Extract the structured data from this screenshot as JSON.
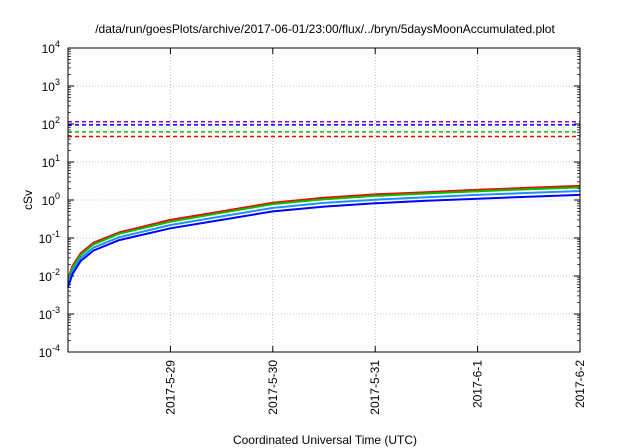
{
  "chart_data": {
    "type": "line",
    "title": "/data/run/goesPlots/archive/2017-06-01/23:00/flux/../bryn/5daysMoonAccumulated.plot",
    "xlabel": "Coordinated Universal Time (UTC)",
    "ylabel": "cSv",
    "yscale": "log",
    "ylim_exponents": [
      -4,
      4
    ],
    "xlim": [
      "2017-05-28 00:00",
      "2017-06-02 00:00"
    ],
    "grid": true,
    "y_ticks": [
      {
        "base": "10",
        "exp": "-4"
      },
      {
        "base": "10",
        "exp": "-3"
      },
      {
        "base": "10",
        "exp": "-2"
      },
      {
        "base": "10",
        "exp": "-1"
      },
      {
        "base": "10",
        "exp": "0"
      },
      {
        "base": "10",
        "exp": "1"
      },
      {
        "base": "10",
        "exp": "2"
      },
      {
        "base": "10",
        "exp": "3"
      },
      {
        "base": "10",
        "exp": "4"
      }
    ],
    "x_ticks": [
      {
        "label": "2017-5-29",
        "date": "2017-05-29"
      },
      {
        "label": "2017-5-30",
        "date": "2017-05-30"
      },
      {
        "label": "2017-5-31",
        "date": "2017-05-31"
      },
      {
        "label": "2017-6-1",
        "date": "2017-06-01"
      },
      {
        "label": "2017-6-2",
        "date": "2017-06-02"
      }
    ],
    "limits": [
      {
        "value": 115,
        "color": "#9400d3"
      },
      {
        "value": 95,
        "color": "#0000ff"
      },
      {
        "value": 62,
        "color": "#00c000"
      },
      {
        "value": 47,
        "color": "#ff0000"
      }
    ],
    "series": [
      {
        "color": "#ff0000",
        "points": [
          [
            "2017-05-28 00:00",
            0.008
          ],
          [
            "2017-05-28 01:00",
            0.018
          ],
          [
            "2017-05-28 03:00",
            0.04
          ],
          [
            "2017-05-28 06:00",
            0.075
          ],
          [
            "2017-05-28 12:00",
            0.14
          ],
          [
            "2017-05-29 00:00",
            0.3
          ],
          [
            "2017-05-29 12:00",
            0.5
          ],
          [
            "2017-05-30 00:00",
            0.85
          ],
          [
            "2017-05-30 12:00",
            1.15
          ],
          [
            "2017-05-31 00:00",
            1.4
          ],
          [
            "2017-05-31 12:00",
            1.6
          ],
          [
            "2017-06-01 00:00",
            1.85
          ],
          [
            "2017-06-01 12:00",
            2.1
          ],
          [
            "2017-06-02 00:00",
            2.35
          ]
        ]
      },
      {
        "color": "#00c000",
        "points": [
          [
            "2017-05-28 00:00",
            0.007
          ],
          [
            "2017-05-28 01:00",
            0.016
          ],
          [
            "2017-05-28 03:00",
            0.036
          ],
          [
            "2017-05-28 06:00",
            0.068
          ],
          [
            "2017-05-28 12:00",
            0.13
          ],
          [
            "2017-05-29 00:00",
            0.27
          ],
          [
            "2017-05-29 12:00",
            0.46
          ],
          [
            "2017-05-30 00:00",
            0.78
          ],
          [
            "2017-05-30 12:00",
            1.05
          ],
          [
            "2017-05-31 00:00",
            1.28
          ],
          [
            "2017-05-31 12:00",
            1.48
          ],
          [
            "2017-06-01 00:00",
            1.7
          ],
          [
            "2017-06-01 12:00",
            1.92
          ],
          [
            "2017-06-02 00:00",
            2.15
          ]
        ]
      },
      {
        "color": "#1e90ff",
        "points": [
          [
            "2017-05-28 00:00",
            0.006
          ],
          [
            "2017-05-28 01:00",
            0.013
          ],
          [
            "2017-05-28 03:00",
            0.03
          ],
          [
            "2017-05-28 06:00",
            0.056
          ],
          [
            "2017-05-28 12:00",
            0.105
          ],
          [
            "2017-05-29 00:00",
            0.22
          ],
          [
            "2017-05-29 12:00",
            0.37
          ],
          [
            "2017-05-30 00:00",
            0.62
          ],
          [
            "2017-05-30 12:00",
            0.84
          ],
          [
            "2017-05-31 00:00",
            1.02
          ],
          [
            "2017-05-31 12:00",
            1.18
          ],
          [
            "2017-06-01 00:00",
            1.36
          ],
          [
            "2017-06-01 12:00",
            1.54
          ],
          [
            "2017-06-02 00:00",
            1.72
          ]
        ]
      },
      {
        "color": "#0000ff",
        "points": [
          [
            "2017-05-28 00:00",
            0.005
          ],
          [
            "2017-05-28 01:00",
            0.011
          ],
          [
            "2017-05-28 03:00",
            0.025
          ],
          [
            "2017-05-28 06:00",
            0.047
          ],
          [
            "2017-05-28 12:00",
            0.088
          ],
          [
            "2017-05-29 00:00",
            0.18
          ],
          [
            "2017-05-29 12:00",
            0.3
          ],
          [
            "2017-05-30 00:00",
            0.5
          ],
          [
            "2017-05-30 12:00",
            0.67
          ],
          [
            "2017-05-31 00:00",
            0.82
          ],
          [
            "2017-05-31 12:00",
            0.95
          ],
          [
            "2017-06-01 00:00",
            1.08
          ],
          [
            "2017-06-01 12:00",
            1.22
          ],
          [
            "2017-06-02 00:00",
            1.36
          ]
        ]
      }
    ]
  }
}
